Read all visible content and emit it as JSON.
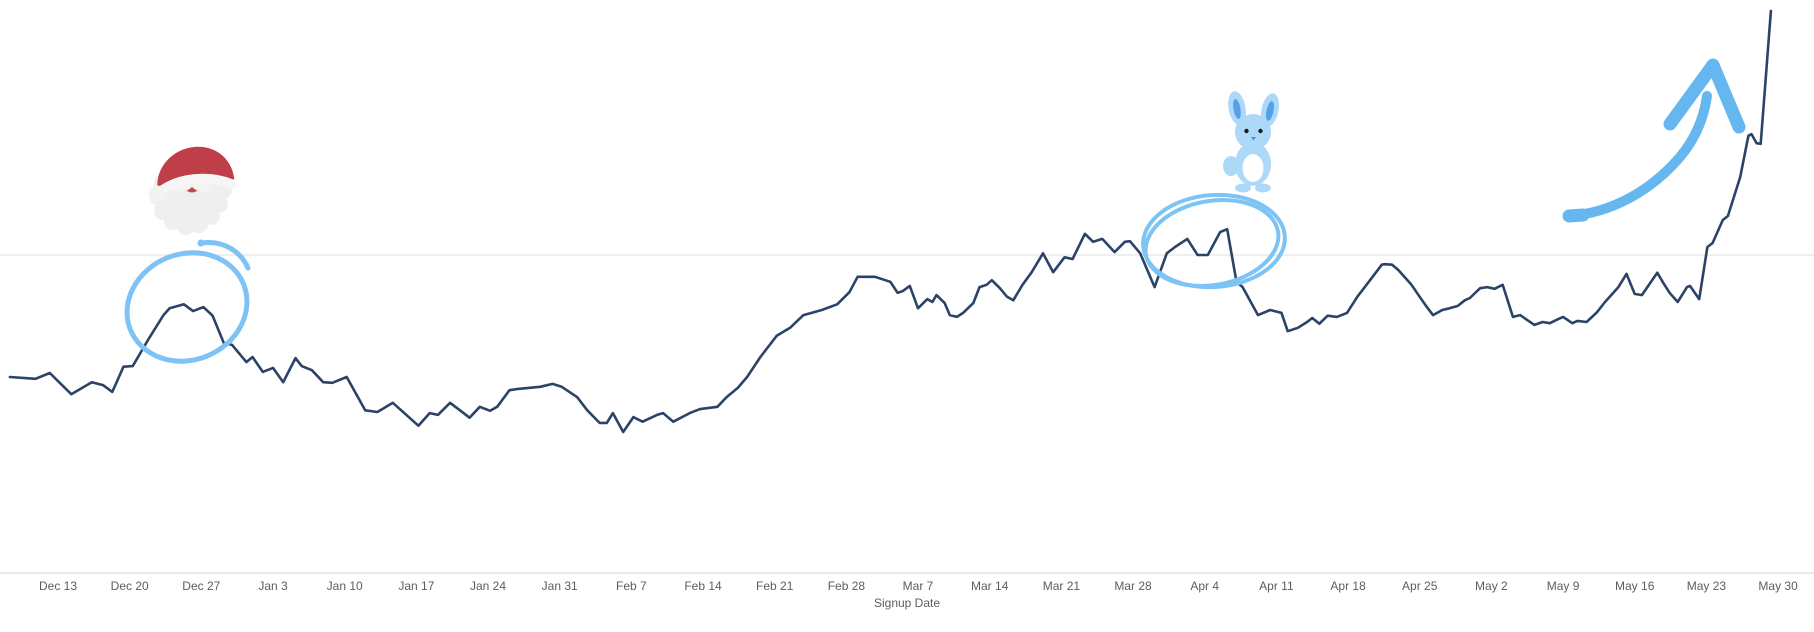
{
  "page": {
    "background": "#ffffff"
  },
  "axis": {
    "title": "Signup Date",
    "tick_text_color": "#5d5d5d",
    "axis_line_color": "#e4e4e4",
    "gridline_color": "#efefef"
  },
  "annotations": {
    "ink_color": "#6fbbf2",
    "santa_icon": {
      "emoji": "🎅",
      "description": "Santa Claus face sticker above the late-December peak"
    },
    "bunny_icon": {
      "emoji": "🐰",
      "description": "light-blue bunny sticker above the early-April peak"
    },
    "circles": [
      {
        "around": "local peak near Dec 27"
      },
      {
        "around": "local peak near Apr 4"
      }
    ],
    "arrow": {
      "description": "hand-drawn curved arrow pointing up-right at the final May spike"
    }
  },
  "chart_data": {
    "type": "line",
    "title": "",
    "xlabel": "Signup Date",
    "ylabel": "",
    "legend": "none",
    "grid": "single horizontal gridline; bottom axis line; no y-axis tick labels",
    "line_color": "#2c4368",
    "x_tick_labels": [
      "Dec 13",
      "Dec 20",
      "Dec 27",
      "Jan 3",
      "Jan 10",
      "Jan 17",
      "Jan 24",
      "Jan 31",
      "Feb 7",
      "Feb 14",
      "Feb 21",
      "Feb 28",
      "Mar 7",
      "Mar 14",
      "Mar 21",
      "Mar 28",
      "Apr 4",
      "Apr 11",
      "Apr 18",
      "Apr 25",
      "May 2",
      "May 9",
      "May 16",
      "May 23",
      "May 30"
    ],
    "x_unit": "days since Dec 13 (ticks every 7 days)",
    "y_unit": "relative height, 0 = baseline, 100 = chart top (y axis unlabeled in source)",
    "ylim": [
      0,
      100
    ],
    "gridline_value": 55.5,
    "points_days_vs_value": [
      [
        -4.7,
        34.2
      ],
      [
        -2.2,
        33.9
      ],
      [
        -0.8,
        34.9
      ],
      [
        1.3,
        31.2
      ],
      [
        3.3,
        33.3
      ],
      [
        4.4,
        32.8
      ],
      [
        5.3,
        31.6
      ],
      [
        6.4,
        36.0
      ],
      [
        7.3,
        36.1
      ],
      [
        8.8,
        40.7
      ],
      [
        10.3,
        45.0
      ],
      [
        10.9,
        46.2
      ],
      [
        12.3,
        46.9
      ],
      [
        13.2,
        45.7
      ],
      [
        14.2,
        46.4
      ],
      [
        15.1,
        44.9
      ],
      [
        16.2,
        40.1
      ],
      [
        17.0,
        39.8
      ],
      [
        18.4,
        36.8
      ],
      [
        19.0,
        37.7
      ],
      [
        20.0,
        35.1
      ],
      [
        21.0,
        35.8
      ],
      [
        22.0,
        33.3
      ],
      [
        23.2,
        37.5
      ],
      [
        23.8,
        36.1
      ],
      [
        24.8,
        35.4
      ],
      [
        25.9,
        33.3
      ],
      [
        26.8,
        33.2
      ],
      [
        28.2,
        34.2
      ],
      [
        30.0,
        28.4
      ],
      [
        31.2,
        28.1
      ],
      [
        32.7,
        29.7
      ],
      [
        35.2,
        25.7
      ],
      [
        36.3,
        27.9
      ],
      [
        37.1,
        27.6
      ],
      [
        38.3,
        29.7
      ],
      [
        40.2,
        27.1
      ],
      [
        41.2,
        29.0
      ],
      [
        42.2,
        28.3
      ],
      [
        42.9,
        29.0
      ],
      [
        44.1,
        31.9
      ],
      [
        44.8,
        32.1
      ],
      [
        47.1,
        32.5
      ],
      [
        48.3,
        33.0
      ],
      [
        49.2,
        32.5
      ],
      [
        50.7,
        30.7
      ],
      [
        51.7,
        28.4
      ],
      [
        52.9,
        26.2
      ],
      [
        53.6,
        26.2
      ],
      [
        54.2,
        27.9
      ],
      [
        55.2,
        24.6
      ],
      [
        56.2,
        27.2
      ],
      [
        57.1,
        26.4
      ],
      [
        58.5,
        27.6
      ],
      [
        59.1,
        27.9
      ],
      [
        60.1,
        26.4
      ],
      [
        61.7,
        27.9
      ],
      [
        62.7,
        28.6
      ],
      [
        64.4,
        29.0
      ],
      [
        65.3,
        30.7
      ],
      [
        66.4,
        32.3
      ],
      [
        67.3,
        34.2
      ],
      [
        68.6,
        37.7
      ],
      [
        70.2,
        41.4
      ],
      [
        71.5,
        42.8
      ],
      [
        72.8,
        45.0
      ],
      [
        73.6,
        45.4
      ],
      [
        74.6,
        45.9
      ],
      [
        76.1,
        46.9
      ],
      [
        77.3,
        49.0
      ],
      [
        78.1,
        51.7
      ],
      [
        79.1,
        51.7
      ],
      [
        79.8,
        51.7
      ],
      [
        80.8,
        51.1
      ],
      [
        81.3,
        50.8
      ],
      [
        82.0,
        48.9
      ],
      [
        82.5,
        49.2
      ],
      [
        83.2,
        50.1
      ],
      [
        84.0,
        46.2
      ],
      [
        84.9,
        47.8
      ],
      [
        85.4,
        47.3
      ],
      [
        85.8,
        48.5
      ],
      [
        86.6,
        47.1
      ],
      [
        87.1,
        45.0
      ],
      [
        87.8,
        44.7
      ],
      [
        88.4,
        45.4
      ],
      [
        89.4,
        47.1
      ],
      [
        90.0,
        49.9
      ],
      [
        90.7,
        50.3
      ],
      [
        91.2,
        51.1
      ],
      [
        92.0,
        49.7
      ],
      [
        92.7,
        48.2
      ],
      [
        93.3,
        47.6
      ],
      [
        94.2,
        50.3
      ],
      [
        95.1,
        52.5
      ],
      [
        96.2,
        55.8
      ],
      [
        97.2,
        52.5
      ],
      [
        98.3,
        55.1
      ],
      [
        99.1,
        54.8
      ],
      [
        100.3,
        59.2
      ],
      [
        101.1,
        57.8
      ],
      [
        102.0,
        58.3
      ],
      [
        103.2,
        56.0
      ],
      [
        104.2,
        57.8
      ],
      [
        104.7,
        57.9
      ],
      [
        105.7,
        55.8
      ],
      [
        107.1,
        49.9
      ],
      [
        108.3,
        55.8
      ],
      [
        109.1,
        56.9
      ],
      [
        110.3,
        58.3
      ],
      [
        111.3,
        55.5
      ],
      [
        112.3,
        55.5
      ],
      [
        113.5,
        59.5
      ],
      [
        114.2,
        60.0
      ],
      [
        115.1,
        50.8
      ],
      [
        115.7,
        49.9
      ],
      [
        117.2,
        45.0
      ],
      [
        118.4,
        45.9
      ],
      [
        119.5,
        45.4
      ],
      [
        120.1,
        42.2
      ],
      [
        121.1,
        42.8
      ],
      [
        122.0,
        43.8
      ],
      [
        122.5,
        44.5
      ],
      [
        123.2,
        43.5
      ],
      [
        124.0,
        44.9
      ],
      [
        124.9,
        44.7
      ],
      [
        125.9,
        45.4
      ],
      [
        126.9,
        48.2
      ],
      [
        127.8,
        50.3
      ],
      [
        128.4,
        51.7
      ],
      [
        129.3,
        53.8
      ],
      [
        129.6,
        53.9
      ],
      [
        130.3,
        53.8
      ],
      [
        130.9,
        52.9
      ],
      [
        132.2,
        50.3
      ],
      [
        133.0,
        48.2
      ],
      [
        133.7,
        46.4
      ],
      [
        134.3,
        45.0
      ],
      [
        135.2,
        45.9
      ],
      [
        135.9,
        46.2
      ],
      [
        136.7,
        46.6
      ],
      [
        137.4,
        47.6
      ],
      [
        137.9,
        48.0
      ],
      [
        138.9,
        49.7
      ],
      [
        139.6,
        49.9
      ],
      [
        140.3,
        49.6
      ],
      [
        141.1,
        50.3
      ],
      [
        142.1,
        44.7
      ],
      [
        142.8,
        45.0
      ],
      [
        144.2,
        43.3
      ],
      [
        145.0,
        43.8
      ],
      [
        145.7,
        43.6
      ],
      [
        146.5,
        44.3
      ],
      [
        147.0,
        44.7
      ],
      [
        147.9,
        43.6
      ],
      [
        148.4,
        44.0
      ],
      [
        149.3,
        43.8
      ],
      [
        150.3,
        45.5
      ],
      [
        151.1,
        47.3
      ],
      [
        151.6,
        48.3
      ],
      [
        152.4,
        49.9
      ],
      [
        153.2,
        52.2
      ],
      [
        154.0,
        48.7
      ],
      [
        154.7,
        48.5
      ],
      [
        155.5,
        50.6
      ],
      [
        156.2,
        52.4
      ],
      [
        156.8,
        50.6
      ],
      [
        157.4,
        48.9
      ],
      [
        158.2,
        47.3
      ],
      [
        159.1,
        49.9
      ],
      [
        159.4,
        50.1
      ],
      [
        160.3,
        47.8
      ],
      [
        161.1,
        56.9
      ],
      [
        161.6,
        57.6
      ],
      [
        162.6,
        61.6
      ],
      [
        163.1,
        62.3
      ],
      [
        164.3,
        69.1
      ],
      [
        165.1,
        76.3
      ],
      [
        165.4,
        76.6
      ],
      [
        165.9,
        75.0
      ],
      [
        166.3,
        74.9
      ],
      [
        167.3,
        98.1
      ]
    ]
  }
}
